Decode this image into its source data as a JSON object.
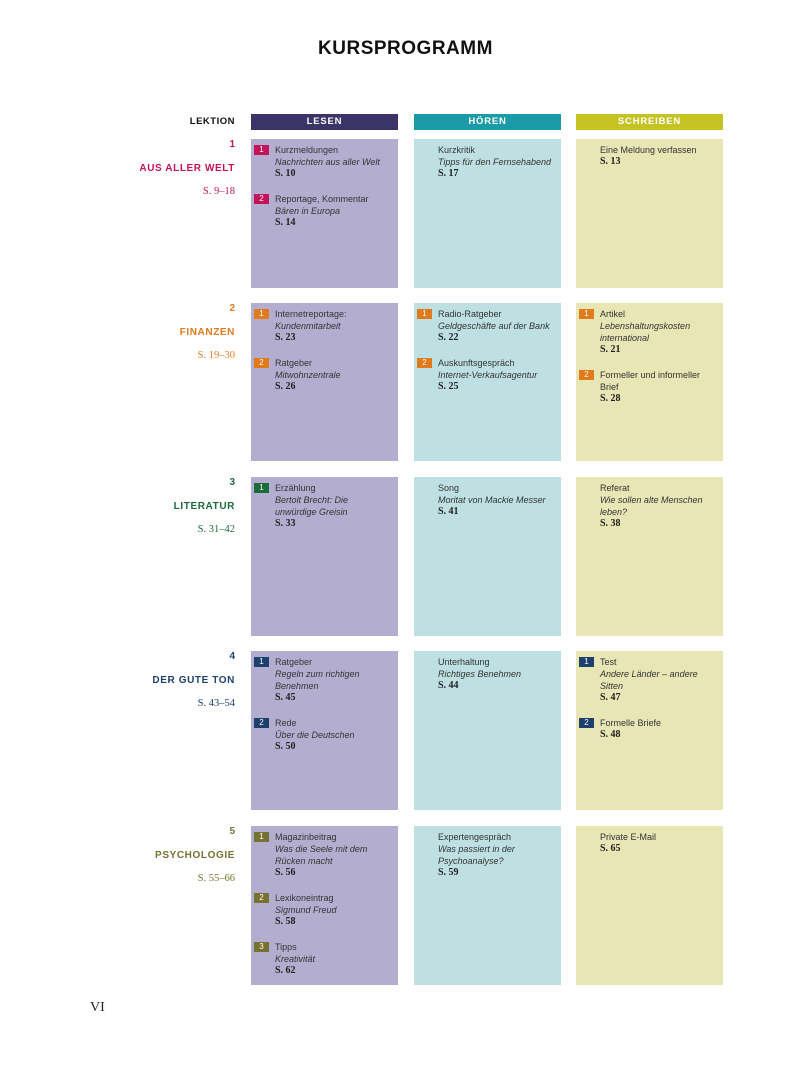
{
  "title": "KURSPROGRAMM",
  "header": {
    "lektion": "LEKTION",
    "columns": [
      "LESEN",
      "HÖREN",
      "SCHREIBEN"
    ]
  },
  "lessons": [
    {
      "number": "1",
      "title": "AUS ALLER WELT",
      "pages": "S. 9–18",
      "cells": [
        [
          {
            "badge": "1",
            "type": "Kurzmeldungen",
            "subtitle": "Nachrichten aus aller Welt",
            "page": "S. 10"
          },
          {
            "badge": "2",
            "type": "Reportage, Kommentar",
            "subtitle": "Bären in Europa",
            "page": "S. 14"
          }
        ],
        [
          {
            "type": "Kurzkritik",
            "subtitle": "Tipps für den Fernsehabend",
            "page": "S. 17"
          }
        ],
        [
          {
            "type": "Eine Meldung verfassen",
            "page": "S. 13"
          }
        ]
      ]
    },
    {
      "number": "2",
      "title": "FINANZEN",
      "pages": "S. 19–30",
      "cells": [
        [
          {
            "badge": "1",
            "type": "Internetreportage:",
            "subtitle": "Kundenmitarbeit",
            "page": "S. 23"
          },
          {
            "badge": "2",
            "type": "Ratgeber",
            "subtitle": "Mitwohnzentrale",
            "page": "S. 26"
          }
        ],
        [
          {
            "badge": "1",
            "type": "Radio-Ratgeber",
            "subtitle": "Geldgeschäfte auf der Bank",
            "page": "S. 22"
          },
          {
            "badge": "2",
            "type": "Auskunftsgespräch",
            "subtitle": "Internet-Verkaufsagentur",
            "page": "S. 25"
          }
        ],
        [
          {
            "badge": "1",
            "type": "Artikel",
            "subtitle": "Lebenshaltungskosten international",
            "page": "S. 21"
          },
          {
            "badge": "2",
            "type": "Formeller und informeller Brief",
            "page": "S. 28"
          }
        ]
      ]
    },
    {
      "number": "3",
      "title": "LITERATUR",
      "pages": "S. 31–42",
      "cells": [
        [
          {
            "badge": "1",
            "type": "Erzählung",
            "subtitle": "Bertolt Brecht: Die unwürdige Greisin",
            "page": "S. 33"
          }
        ],
        [
          {
            "type": "Song",
            "subtitle": "Moritat von Mackie Messer",
            "page": "S. 41"
          }
        ],
        [
          {
            "type": "Referat",
            "subtitle": "Wie sollen alte Menschen leben?",
            "page": "S. 38"
          }
        ]
      ]
    },
    {
      "number": "4",
      "title": "DER GUTE TON",
      "pages": "S. 43–54",
      "cells": [
        [
          {
            "badge": "1",
            "type": "Ratgeber",
            "subtitle": "Regeln zum richtigen Benehmen",
            "page": "S. 45"
          },
          {
            "badge": "2",
            "type": "Rede",
            "subtitle": "Über die Deutschen",
            "page": "S. 50"
          }
        ],
        [
          {
            "type": "Unterhaltung",
            "subtitle": "Richtiges Benehmen",
            "page": "S. 44"
          }
        ],
        [
          {
            "badge": "1",
            "type": "Test",
            "subtitle": "Andere Länder – andere Sitten",
            "page": "S. 47"
          },
          {
            "badge": "2",
            "type": "Formelle Briefe",
            "page": "S. 48"
          }
        ]
      ]
    },
    {
      "number": "5",
      "title": "PSYCHOLOGIE",
      "pages": "S. 55–66",
      "cells": [
        [
          {
            "badge": "1",
            "type": "Magazinbeitrag",
            "subtitle": "Was die Seele mit dem Rücken macht",
            "page": "S. 56"
          },
          {
            "badge": "2",
            "type": "Lexikoneintrag",
            "subtitle": "Sigmund Freud",
            "page": "S. 58"
          },
          {
            "badge": "3",
            "type": "Tipps",
            "subtitle": "Kreativität",
            "page": "S. 62"
          }
        ],
        [
          {
            "type": "Expertengespräch",
            "subtitle": "Was passiert in der Psychoanalyse?",
            "page": "S. 59"
          }
        ],
        [
          {
            "type": "Private E-Mail",
            "page": "S. 65"
          }
        ]
      ]
    }
  ],
  "page_number": "VI"
}
